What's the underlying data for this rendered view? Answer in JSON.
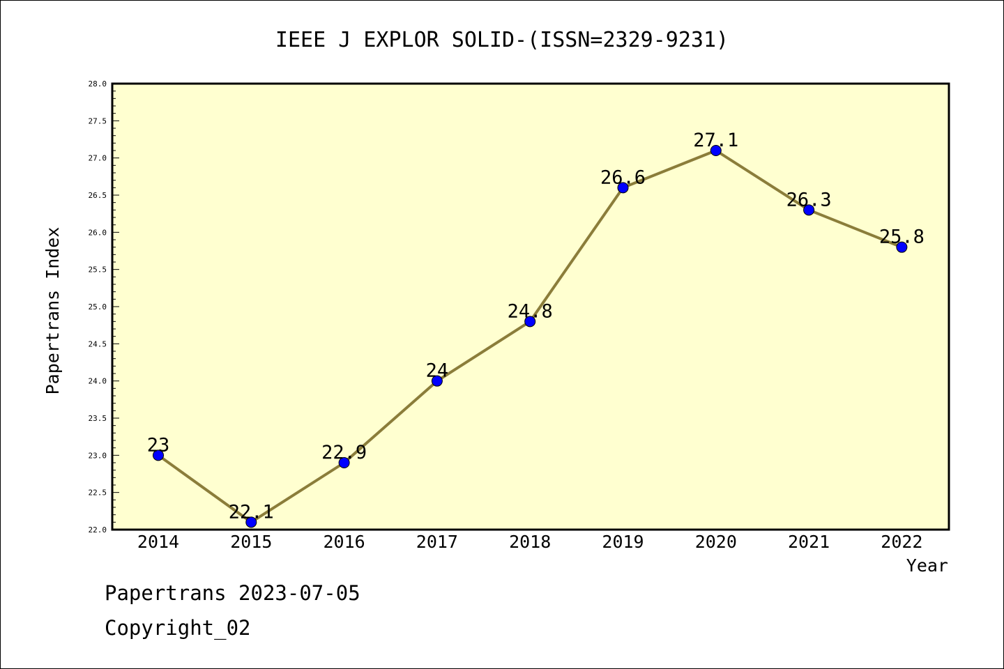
{
  "chart_data": {
    "type": "line",
    "title": "IEEE J EXPLOR SOLID-(ISSN=2329-9231)",
    "xlabel": "Year",
    "ylabel": "Papertrans Index",
    "categories": [
      "2014",
      "2015",
      "2016",
      "2017",
      "2018",
      "2019",
      "2020",
      "2021",
      "2022"
    ],
    "values": [
      23,
      22.1,
      22.9,
      24,
      24.8,
      26.6,
      27.1,
      26.3,
      25.8
    ],
    "data_labels": [
      "23",
      "22.1",
      "22.9",
      "24",
      "24.8",
      "26.6",
      "27.1",
      "26.3",
      "25.8"
    ],
    "ylim": [
      22.0,
      28.0
    ],
    "yticks": [
      "22.0",
      "22.5",
      "23.0",
      "23.5",
      "24.0",
      "24.5",
      "25.0",
      "25.5",
      "26.0",
      "26.5",
      "27.0",
      "27.5",
      "28.0"
    ],
    "grid": false,
    "colors": {
      "line": "#8b7d3a",
      "marker": "#0000ff",
      "plot_background": "#ffffd0"
    }
  },
  "footer": {
    "date_text": "Papertrans 2023-07-05",
    "copyright_text": "Copyright_02"
  }
}
